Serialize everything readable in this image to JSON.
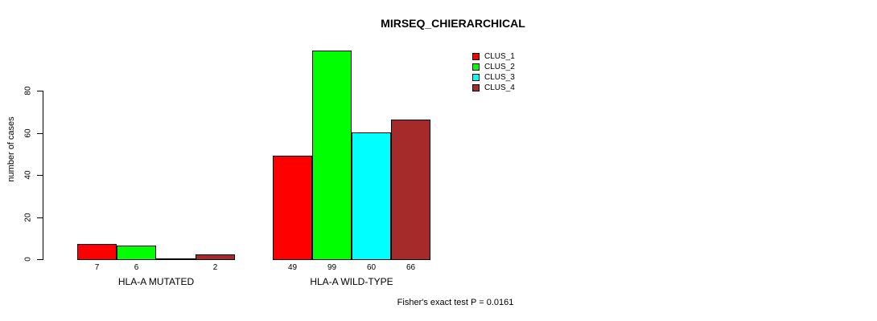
{
  "chart_data": {
    "type": "bar",
    "title": "MIRSEQ_CHIERARCHICAL",
    "ylabel": "number of cases",
    "xlabel": "",
    "annotation": "Fisher's exact test P = 0.0161",
    "categories": [
      "HLA-A MUTATED",
      "HLA-A WILD-TYPE"
    ],
    "series": [
      {
        "name": "CLUS_1",
        "color": "#FF0000",
        "values": [
          7,
          49
        ]
      },
      {
        "name": "CLUS_2",
        "color": "#00FF00",
        "values": [
          6,
          99
        ]
      },
      {
        "name": "CLUS_3",
        "color": "#00FFFF",
        "values": [
          0,
          60
        ]
      },
      {
        "name": "CLUS_4",
        "color": "#A52A2A",
        "values": [
          2,
          66
        ]
      }
    ],
    "value_labels": [
      [
        "7",
        "6",
        "",
        "2"
      ],
      [
        "49",
        "99",
        "60",
        "66"
      ]
    ],
    "yticks": [
      0,
      20,
      40,
      60,
      80
    ],
    "ylim": [
      0,
      103
    ],
    "grid": false,
    "legend_position": "top-right",
    "bar_border_color": "#000000",
    "text_color": "#000000",
    "background_color": "#FFFFFF"
  }
}
